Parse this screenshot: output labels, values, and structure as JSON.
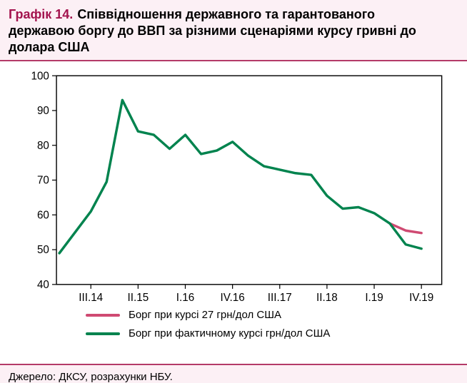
{
  "title": {
    "prefix": "Графік 14.",
    "text": "Співвідношення державного та гарантованого державою боргу до ВВП за різними сценаріями курсу гривні до долара США"
  },
  "source": "Джерело: ДКСУ, розрахунки НБУ.",
  "theme": {
    "page_background": "#fcf0f5",
    "accent_title": "#a3134e",
    "rule_color": "#b43a68",
    "plot_border": "#000000",
    "pink_line": "#cf4a72",
    "green_line": "#00834e"
  },
  "chart_data": {
    "type": "line",
    "title": "Графік 14. Співвідношення державного та гарантованого державою боргу до ВВП за різними сценаріями курсу гривні до долара США",
    "xlabel": "",
    "ylabel": "",
    "ylim": [
      40,
      100
    ],
    "y_ticks": [
      40,
      50,
      60,
      70,
      80,
      90,
      100
    ],
    "grid": false,
    "legend_position": "bottom",
    "categories": [
      "I.14",
      "II.14",
      "III.14",
      "IV.14",
      "I.15",
      "II.15",
      "III.15",
      "IV.15",
      "I.16",
      "II.16",
      "III.16",
      "IV.16",
      "I.17",
      "II.17",
      "III.17",
      "IV.17",
      "I.18",
      "II.18",
      "III.18",
      "IV.18",
      "I.19",
      "II.19",
      "III.19",
      "IV.19"
    ],
    "x_tick_indices": [
      2,
      5,
      8,
      11,
      14,
      17,
      20,
      23
    ],
    "x_tick_labels": [
      "III.14",
      "II.15",
      "I.16",
      "IV.16",
      "III.17",
      "II.18",
      "I.19",
      "IV.19"
    ],
    "series": [
      {
        "name": "Борг при курсі 27 грн/дол США",
        "color": "#cf4a72",
        "values": [
          null,
          null,
          null,
          null,
          null,
          null,
          null,
          null,
          null,
          null,
          null,
          null,
          null,
          null,
          null,
          null,
          null,
          null,
          null,
          null,
          null,
          57.5,
          55.5,
          54.8
        ]
      },
      {
        "name": "Борг при фактичному курсі грн/дол США",
        "color": "#00834e",
        "values": [
          49,
          55,
          61,
          69.5,
          93,
          84,
          83,
          79,
          83,
          77.5,
          78.5,
          81,
          77,
          74,
          73,
          72,
          71.5,
          65.5,
          61.8,
          62.2,
          60.5,
          57.5,
          51.5,
          50.3
        ]
      }
    ]
  }
}
